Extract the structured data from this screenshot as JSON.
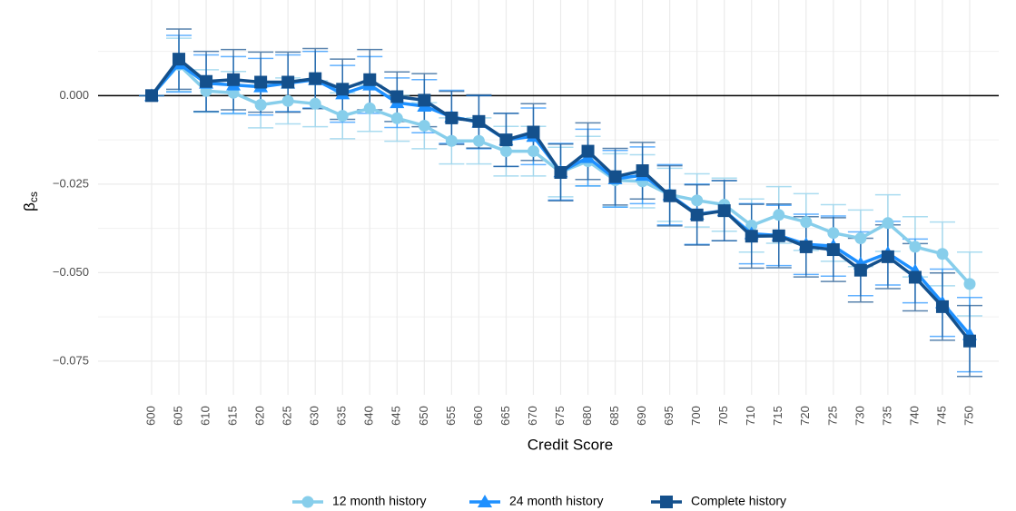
{
  "chart_data": {
    "type": "line",
    "xlabel": "Credit Score",
    "ylabel": "β",
    "ylabel_subscript": "cs",
    "categories": [
      "600",
      "605",
      "610",
      "615",
      "620",
      "625",
      "630",
      "635",
      "640",
      "645",
      "650",
      "655",
      "660",
      "665",
      "670",
      "675",
      "680",
      "685",
      "690",
      "695",
      "700",
      "705",
      "710",
      "715",
      "720",
      "725",
      "730",
      "735",
      "740",
      "745",
      "750"
    ],
    "ylim": [
      -0.0845,
      0.027
    ],
    "yticks": [
      {
        "value": 0,
        "label": "0.000"
      },
      {
        "value": -0.025,
        "label": "−0.025"
      },
      {
        "value": -0.05,
        "label": "−0.050"
      },
      {
        "value": -0.075,
        "label": "−0.075"
      }
    ],
    "minor_yticks": [
      0.0125,
      -0.0125,
      -0.0375,
      -0.0625
    ],
    "reference_line": 0,
    "grid": true,
    "legend": "bottom",
    "series": [
      {
        "name": "12 month history",
        "color": "#87ceeb",
        "marker": "circle",
        "values": [
          0,
          0.0087,
          0.0013,
          0.0008,
          -0.0026,
          -0.0015,
          -0.0023,
          -0.0057,
          -0.0036,
          -0.0064,
          -0.0085,
          -0.0128,
          -0.0128,
          -0.0157,
          -0.0157,
          -0.0216,
          -0.0185,
          -0.0239,
          -0.0242,
          -0.028,
          -0.0296,
          -0.0308,
          -0.0367,
          -0.0337,
          -0.0357,
          -0.0388,
          -0.0403,
          -0.036,
          -0.0427,
          -0.0447,
          -0.0532
        ],
        "errors": [
          0,
          0.0075,
          0.006,
          0.006,
          0.0065,
          0.0065,
          0.0065,
          0.0065,
          0.0065,
          0.0065,
          0.0065,
          0.0065,
          0.0065,
          0.007,
          0.007,
          0.007,
          0.007,
          0.0075,
          0.0075,
          0.0075,
          0.0075,
          0.0075,
          0.0075,
          0.008,
          0.008,
          0.008,
          0.008,
          0.008,
          0.0085,
          0.009,
          0.009
        ]
      },
      {
        "name": "24 month history",
        "color": "#1e90ff",
        "marker": "triangle",
        "values": [
          0,
          0.009,
          0.0035,
          0.003,
          0.0025,
          0.0035,
          0.0045,
          0.0005,
          0.003,
          -0.002,
          -0.003,
          -0.006,
          -0.0075,
          -0.0125,
          -0.0115,
          -0.0215,
          -0.0175,
          -0.0235,
          -0.0225,
          -0.028,
          -0.0335,
          -0.0325,
          -0.039,
          -0.0395,
          -0.042,
          -0.0425,
          -0.0475,
          -0.0445,
          -0.0495,
          -0.0585,
          -0.0675
        ],
        "errors": [
          0,
          0.008,
          0.008,
          0.008,
          0.008,
          0.008,
          0.008,
          0.008,
          0.008,
          0.007,
          0.0075,
          0.0075,
          0.0075,
          0.0075,
          0.008,
          0.008,
          0.008,
          0.008,
          0.008,
          0.0085,
          0.0085,
          0.0085,
          0.0085,
          0.0085,
          0.0085,
          0.0085,
          0.009,
          0.009,
          0.009,
          0.0095,
          0.0105
        ]
      },
      {
        "name": "Complete history",
        "color": "#14508c",
        "marker": "square",
        "values": [
          0,
          0.0103,
          0.004,
          0.0045,
          0.0038,
          0.0038,
          0.0048,
          0.0018,
          0.0045,
          -0.0003,
          -0.0013,
          -0.0063,
          -0.0073,
          -0.0125,
          -0.0103,
          -0.0217,
          -0.0157,
          -0.0229,
          -0.0212,
          -0.0283,
          -0.0337,
          -0.0325,
          -0.0397,
          -0.0396,
          -0.0427,
          -0.0435,
          -0.0493,
          -0.0455,
          -0.0513,
          -0.0596,
          -0.0693
        ],
        "errors": [
          0,
          0.0085,
          0.0085,
          0.0085,
          0.0085,
          0.0085,
          0.0085,
          0.0085,
          0.0085,
          0.007,
          0.0075,
          0.0075,
          0.0075,
          0.0075,
          0.008,
          0.008,
          0.008,
          0.008,
          0.008,
          0.0085,
          0.0085,
          0.0085,
          0.009,
          0.009,
          0.0085,
          0.009,
          0.009,
          0.009,
          0.0095,
          0.0095,
          0.01
        ]
      }
    ]
  }
}
